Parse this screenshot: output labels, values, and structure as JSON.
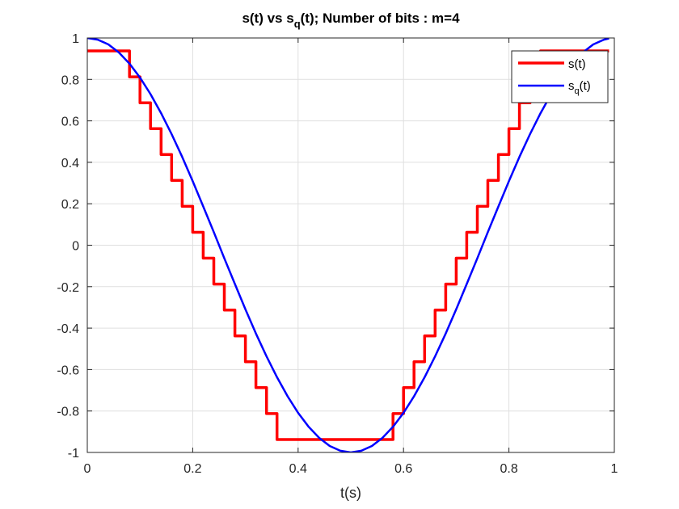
{
  "chart_data": {
    "type": "line",
    "title": "s(t) vs s_q(t);  Number of bits : m=4",
    "title_parts": {
      "pre": "s(t) vs s",
      "sub": "q",
      "post": "(t);  Number of bits : m=4"
    },
    "xlabel": "t(s)",
    "ylabel": "",
    "xlim": [
      0,
      1
    ],
    "ylim": [
      -1,
      1
    ],
    "x_ticks": [
      "0",
      "0.2",
      "0.4",
      "0.6",
      "0.8",
      "1"
    ],
    "y_ticks": [
      "1",
      "0.8",
      "0.6",
      "0.4",
      "0.2",
      "0",
      "-0.2",
      "-0.4",
      "-0.6",
      "-0.8",
      "-1"
    ],
    "grid": true,
    "legend_position": "top-right",
    "legend": [
      {
        "text": "s(t)",
        "base": "s",
        "sub": "",
        "post": "(t)",
        "color": "#ff0000"
      },
      {
        "text": "s_q(t)",
        "base": "s",
        "sub": "q",
        "post": "(t)",
        "color": "#0000ff"
      }
    ],
    "series": [
      {
        "name": "s(t)",
        "color": "#ff0000",
        "style": "step",
        "x": [
          0,
          0.08,
          0.08,
          0.1,
          0.1,
          0.12,
          0.12,
          0.14,
          0.14,
          0.16,
          0.16,
          0.18,
          0.18,
          0.2,
          0.2,
          0.22,
          0.22,
          0.24,
          0.24,
          0.26,
          0.26,
          0.28,
          0.28,
          0.3,
          0.3,
          0.32,
          0.32,
          0.34,
          0.34,
          0.36,
          0.36,
          0.38,
          0.38,
          0.4,
          0.4,
          0.42,
          0.42,
          0.58,
          0.58,
          0.6,
          0.6,
          0.62,
          0.62,
          0.64,
          0.64,
          0.66,
          0.66,
          0.68,
          0.68,
          0.7,
          0.7,
          0.72,
          0.72,
          0.74,
          0.74,
          0.76,
          0.76,
          0.78,
          0.78,
          0.8,
          0.8,
          0.82,
          0.82,
          0.84,
          0.84,
          0.86,
          0.86,
          0.88,
          0.88,
          0.9,
          0.9,
          0.92,
          0.92,
          0.99
        ],
        "y": [
          0.9375,
          0.9375,
          0.8125,
          0.8125,
          0.6875,
          0.6875,
          0.5625,
          0.5625,
          0.4375,
          0.4375,
          0.3125,
          0.3125,
          0.1875,
          0.1875,
          0.0625,
          0.0625,
          -0.0625,
          -0.0625,
          -0.1875,
          -0.1875,
          -0.3125,
          -0.3125,
          -0.4375,
          -0.4375,
          -0.5625,
          -0.5625,
          -0.6875,
          -0.6875,
          -0.8125,
          -0.8125,
          -0.9375,
          -0.9375,
          -0.9375,
          -0.9375,
          -0.9375,
          -0.9375,
          -0.9375,
          -0.9375,
          -0.8125,
          -0.8125,
          -0.6875,
          -0.6875,
          -0.5625,
          -0.5625,
          -0.4375,
          -0.4375,
          -0.3125,
          -0.3125,
          -0.1875,
          -0.1875,
          -0.0625,
          -0.0625,
          0.0625,
          0.0625,
          0.1875,
          0.1875,
          0.3125,
          0.3125,
          0.4375,
          0.4375,
          0.5625,
          0.5625,
          0.6875,
          0.6875,
          0.8125,
          0.8125,
          0.9375,
          0.9375,
          0.9375,
          0.9375,
          0.9375,
          0.9375,
          0.9375,
          0.9375
        ]
      },
      {
        "name": "s_q(t)",
        "color": "#0000ff",
        "style": "line",
        "x": [
          0,
          0.02,
          0.04,
          0.06,
          0.08,
          0.1,
          0.12,
          0.14,
          0.16,
          0.18,
          0.2,
          0.22,
          0.24,
          0.26,
          0.28,
          0.3,
          0.32,
          0.34,
          0.36,
          0.38,
          0.4,
          0.42,
          0.44,
          0.46,
          0.48,
          0.5,
          0.52,
          0.54,
          0.56,
          0.58,
          0.6,
          0.62,
          0.64,
          0.66,
          0.68,
          0.7,
          0.72,
          0.74,
          0.76,
          0.78,
          0.8,
          0.82,
          0.84,
          0.86,
          0.88,
          0.9,
          0.92,
          0.94,
          0.96,
          0.98,
          0.99
        ],
        "y": [
          1.0,
          0.992,
          0.969,
          0.93,
          0.876,
          0.809,
          0.729,
          0.637,
          0.536,
          0.426,
          0.309,
          0.187,
          0.063,
          -0.063,
          -0.187,
          -0.309,
          -0.426,
          -0.536,
          -0.637,
          -0.729,
          -0.809,
          -0.876,
          -0.93,
          -0.969,
          -0.992,
          -1.0,
          -0.992,
          -0.969,
          -0.93,
          -0.876,
          -0.809,
          -0.729,
          -0.637,
          -0.536,
          -0.426,
          -0.309,
          -0.187,
          -0.063,
          0.063,
          0.187,
          0.309,
          0.426,
          0.536,
          0.637,
          0.729,
          0.809,
          0.876,
          0.93,
          0.969,
          0.992,
          0.998
        ]
      }
    ]
  }
}
